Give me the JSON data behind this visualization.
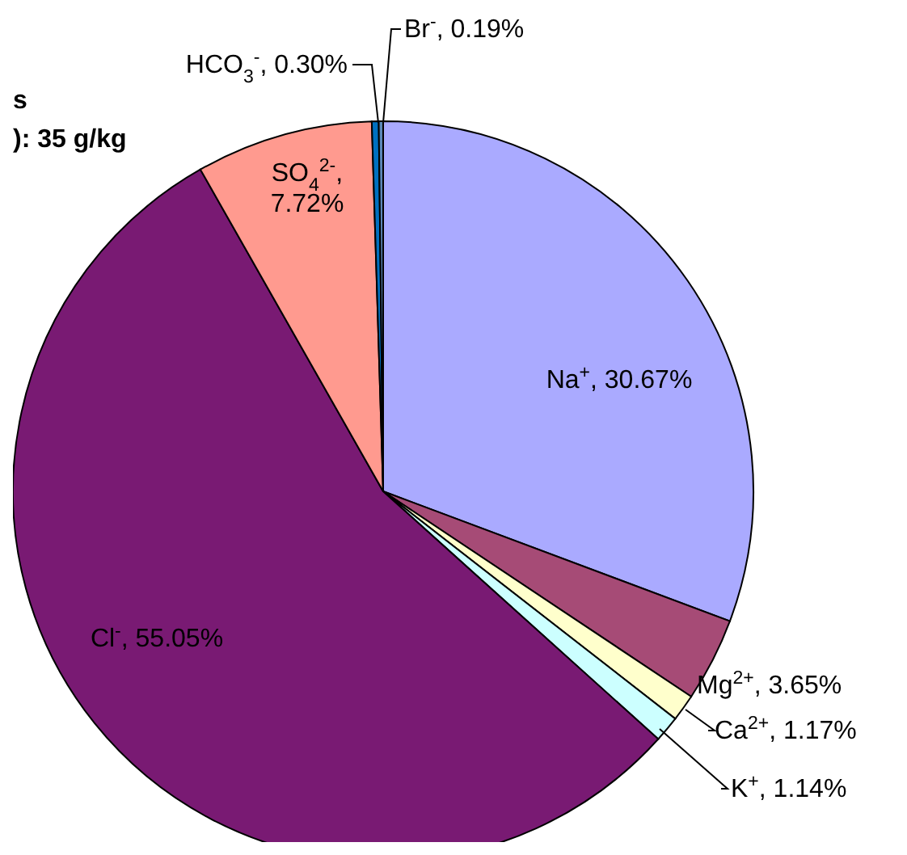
{
  "chart_data": {
    "type": "pie",
    "categories": [
      "Na$^{+}$",
      "Mg$^{2+}$",
      "Ca$^{2+}$",
      "K$^{+}$",
      "Cl$^{-}$",
      "SO$_{4}$$^{2-}$",
      "HCO$_{3}$$^{-}$",
      "Br$^{-}$"
    ],
    "values": [
      30.67,
      3.65,
      1.17,
      1.14,
      55.05,
      7.72,
      0.3,
      0.19
    ],
    "colors": [
      "#aaaaff",
      "#a64b76",
      "#ffffcc",
      "#ccffff",
      "#791a73",
      "#ff9a8f",
      "#0070c0",
      "#5c88b8"
    ],
    "value_labels": [
      ", 30.67%",
      ", 3.65%",
      ", 1.17%",
      ", 1.14%",
      ", 55.05%",
      ", 7.72%",
      ", 0.30%",
      ", 0.19%"
    ],
    "annotations": [
      "s",
      "): 35 g/kg"
    ]
  }
}
